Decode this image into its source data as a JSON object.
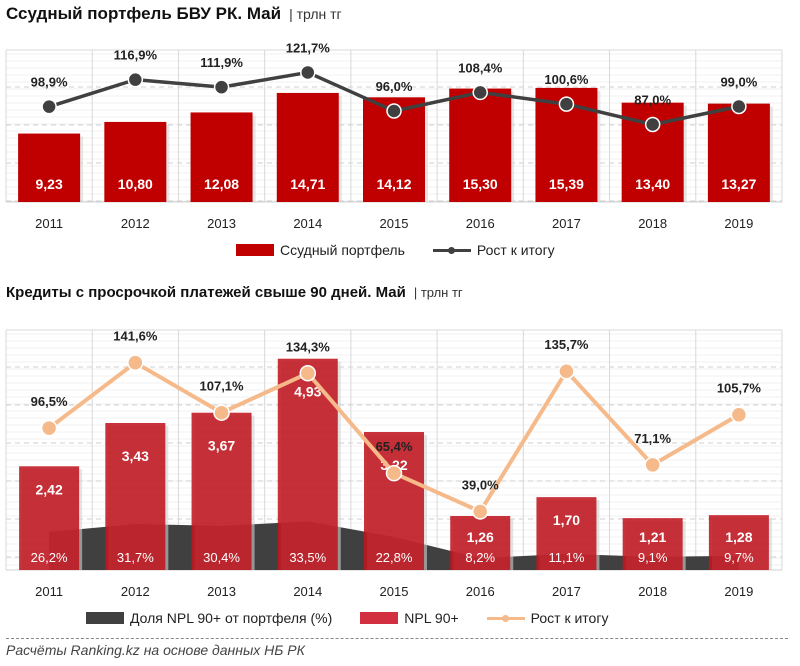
{
  "chart_data": [
    {
      "type": "bar",
      "title": "Ссудный портфель БВУ РК. Май",
      "unit": "| трлн тг",
      "categories": [
        "2011",
        "2012",
        "2013",
        "2014",
        "2015",
        "2016",
        "2017",
        "2018",
        "2019"
      ],
      "series": [
        {
          "name": "Ссудный портфель",
          "kind": "bar",
          "color": "#c00000",
          "values": [
            9.23,
            10.8,
            12.08,
            14.71,
            14.12,
            15.3,
            15.39,
            13.4,
            13.27
          ],
          "labels": [
            "9,23",
            "10,80",
            "12,08",
            "14,71",
            "14,12",
            "15,30",
            "15,39",
            "13,40",
            "13,27"
          ]
        },
        {
          "name": "Рост к итогу",
          "kind": "line",
          "color": "#404040",
          "values": [
            98.9,
            116.9,
            111.9,
            121.7,
            96.0,
            108.4,
            100.6,
            87.0,
            99.0
          ],
          "labels": [
            "98,9%",
            "116,9%",
            "111,9%",
            "121,7%",
            "96,0%",
            "108,4%",
            "100,6%",
            "87,0%",
            "99,0%"
          ]
        }
      ],
      "xlabel": "",
      "ylabel": "",
      "grid": true,
      "legend_position": "bottom"
    },
    {
      "type": "bar",
      "title": "Кредиты с просрочкой платежей свыше 90 дней. Май",
      "unit": "| трлн тг",
      "categories": [
        "2011",
        "2012",
        "2013",
        "2014",
        "2015",
        "2016",
        "2017",
        "2018",
        "2019"
      ],
      "series": [
        {
          "name": "Доля NPL 90+ от портфеля (%)",
          "kind": "area",
          "color": "#404040",
          "values": [
            26.2,
            31.7,
            30.4,
            33.5,
            22.8,
            8.2,
            11.1,
            9.1,
            9.7
          ],
          "labels": [
            "26,2%",
            "31,7%",
            "30,4%",
            "33,5%",
            "22,8%",
            "8,2%",
            "11,1%",
            "9,1%",
            "9,7%"
          ]
        },
        {
          "name": "NPL 90+",
          "kind": "bar",
          "color": "#c0161f",
          "values": [
            2.42,
            3.43,
            3.67,
            4.93,
            3.22,
            1.26,
            1.7,
            1.21,
            1.28
          ],
          "labels": [
            "2,42",
            "3,43",
            "3,67",
            "4,93",
            "3,22",
            "1,26",
            "1,70",
            "1,21",
            "1,28"
          ]
        },
        {
          "name": "Рост к итогу",
          "kind": "line",
          "color": "#f5b98a",
          "values": [
            96.5,
            141.6,
            107.1,
            134.3,
            65.4,
            39.0,
            135.7,
            71.1,
            105.7
          ],
          "labels": [
            "96,5%",
            "141,6%",
            "107,1%",
            "134,3%",
            "65,4%",
            "39,0%",
            "135,7%",
            "71,1%",
            "105,7%"
          ]
        }
      ],
      "xlabel": "",
      "ylabel": "",
      "grid": true,
      "legend_position": "bottom"
    }
  ],
  "source": "Расчёты Ranking.kz на основе данных НБ РК"
}
